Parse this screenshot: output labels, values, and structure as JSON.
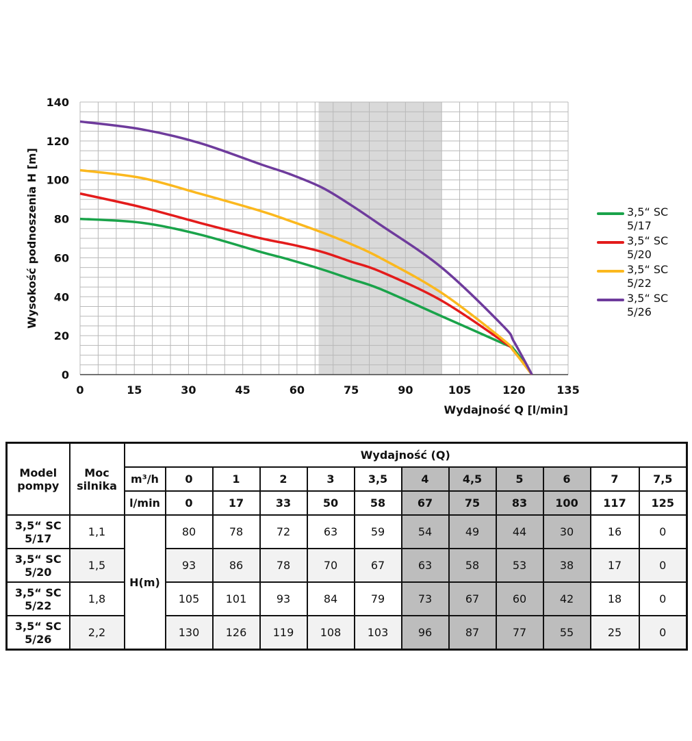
{
  "chart_data": {
    "type": "line",
    "xlabel": "Wydajność Q [l/min]",
    "ylabel": "Wysokość podnoszenia H [m]",
    "xlim": [
      0,
      135
    ],
    "ylim": [
      0,
      140
    ],
    "xticks": [
      0,
      15,
      30,
      45,
      60,
      75,
      90,
      105,
      120,
      135
    ],
    "yticks": [
      0,
      20,
      40,
      60,
      80,
      100,
      120,
      140
    ],
    "grid": true,
    "shaded_range": [
      66,
      100
    ],
    "legend_position": "right",
    "series": [
      {
        "name": "3,5“ SC 5/17",
        "color": "#1aa34a",
        "x": [
          0,
          17,
          33,
          50,
          58,
          67,
          75,
          83,
          100,
          117,
          120,
          125
        ],
        "y": [
          80,
          78,
          72,
          63,
          59,
          54,
          49,
          44,
          30,
          16,
          13,
          0
        ]
      },
      {
        "name": "3,5“ SC 5/20",
        "color": "#e31b1b",
        "x": [
          0,
          17,
          33,
          50,
          58,
          67,
          75,
          83,
          100,
          117,
          120,
          125
        ],
        "y": [
          93,
          86,
          78,
          70,
          67,
          63,
          58,
          53,
          38,
          17,
          12,
          0
        ]
      },
      {
        "name": "3,5“ SC 5/22",
        "color": "#fbb81e",
        "x": [
          0,
          17,
          33,
          50,
          58,
          67,
          75,
          83,
          100,
          117,
          120,
          125
        ],
        "y": [
          105,
          101,
          93,
          84,
          79,
          73,
          67,
          60,
          42,
          18,
          12,
          0
        ]
      },
      {
        "name": "3,5“ SC 5/26",
        "color": "#6e3b9c",
        "x": [
          0,
          17,
          33,
          50,
          58,
          67,
          75,
          83,
          100,
          117,
          120,
          125
        ],
        "y": [
          130,
          126,
          119,
          108,
          103,
          96,
          87,
          77,
          55,
          25,
          17,
          0
        ]
      }
    ]
  },
  "table": {
    "model_header": "Model\npompy",
    "power_header": "Moc\nsilnika",
    "flow_header": "Wydajność (Q)",
    "m3h_label": "m³/h",
    "lmin_label": "l/min",
    "unit_label": "H(m)",
    "m3h": [
      "0",
      "1",
      "2",
      "3",
      "3,5",
      "4",
      "4,5",
      "5",
      "6",
      "7",
      "7,5"
    ],
    "lmin": [
      "0",
      "17",
      "33",
      "50",
      "58",
      "67",
      "75",
      "83",
      "100",
      "117",
      "125"
    ],
    "highlight_cols": [
      5,
      6,
      7,
      8
    ],
    "rows": [
      {
        "model": "3,5“ SC\n5/17",
        "power": "1,1",
        "values": [
          "80",
          "78",
          "72",
          "63",
          "59",
          "54",
          "49",
          "44",
          "30",
          "16",
          "0"
        ]
      },
      {
        "model": "3,5“ SC\n5/20",
        "power": "1,5",
        "values": [
          "93",
          "86",
          "78",
          "70",
          "67",
          "63",
          "58",
          "53",
          "38",
          "17",
          "0"
        ]
      },
      {
        "model": "3,5“ SC\n5/22",
        "power": "1,8",
        "values": [
          "105",
          "101",
          "93",
          "84",
          "79",
          "73",
          "67",
          "60",
          "42",
          "18",
          "0"
        ]
      },
      {
        "model": "3,5“ SC\n5/26",
        "power": "2,2",
        "values": [
          "130",
          "126",
          "119",
          "108",
          "103",
          "96",
          "87",
          "77",
          "55",
          "25",
          "0"
        ]
      }
    ]
  }
}
